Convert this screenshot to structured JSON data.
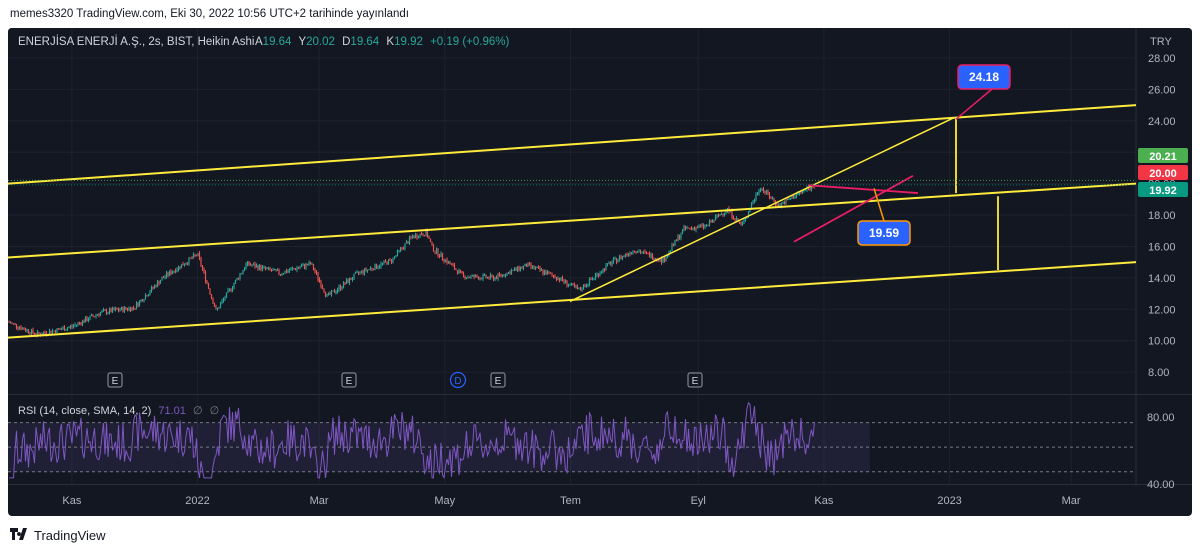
{
  "publish_line": "memes3320 TradingView.com, Eki 30, 2022 10:56 UTC+2 tarihinde yayınlandı",
  "footer": {
    "brand": "TradingView",
    "logo_icon": "tradingview-logo-icon"
  },
  "header": {
    "symbol": "ENERJİSA ENERJİ A.Ş., 2s, BIST, Heikin Ashi",
    "o_label": "A",
    "o_value": "19.64",
    "h_label": "Y",
    "h_value": "20.02",
    "l_label": "D",
    "l_value": "19.64",
    "c_label": "K",
    "c_value": "19.92",
    "change": "+0.19 (+0.96%)",
    "currency": "TRY"
  },
  "rsi": {
    "label": "RSI (14, close, SMA, 14, 2)",
    "value": "71.01",
    "extra1": "∅",
    "extra2": "∅",
    "ticks": [
      "80.00",
      "40.00"
    ]
  },
  "price_badges": [
    {
      "text": "20.21",
      "color": "#4caf50"
    },
    {
      "text": "20.00",
      "color": "#f23645"
    },
    {
      "text": "19.92",
      "color": "#089981"
    }
  ],
  "callouts": [
    {
      "text": "24.18",
      "color": "#2962ff",
      "border": "#e91e63"
    },
    {
      "text": "19.59",
      "color": "#2962ff",
      "border": "#ff9800"
    }
  ],
  "event_markers": [
    {
      "letter": "E",
      "kind": "earnings"
    },
    {
      "letter": "E",
      "kind": "earnings"
    },
    {
      "letter": "D",
      "kind": "dividend"
    },
    {
      "letter": "E",
      "kind": "earnings"
    },
    {
      "letter": "E",
      "kind": "earnings"
    }
  ],
  "chart_data": {
    "type": "candlestick",
    "chart_style": "Heikin Ashi",
    "symbol": "ENERJİSA ENERJİ A.Ş.",
    "exchange": "BIST",
    "interval": "2s",
    "ylabel": "TRY",
    "ylim": [
      7.5,
      29
    ],
    "y_ticks": [
      "28.00",
      "26.00",
      "24.00",
      "22.00",
      "20.00",
      "18.00",
      "16.00",
      "14.00",
      "12.00",
      "10.00",
      "8.00"
    ],
    "x_ticks": [
      "Kas",
      "2022",
      "Mar",
      "May",
      "Tem",
      "Eyl",
      "Kas",
      "2023",
      "Mar"
    ],
    "grid": true,
    "colors": {
      "up": "#26a69a",
      "down": "#ef5350",
      "trendline": "#ffeb3b",
      "rsi": "#7e57c2",
      "triangle": "#e91e63"
    },
    "price_path": [
      {
        "date": "2021-10-01",
        "close": 11.2
      },
      {
        "date": "2021-10-15",
        "close": 10.4
      },
      {
        "date": "2021-11-01",
        "close": 10.9
      },
      {
        "date": "2021-11-15",
        "close": 11.8
      },
      {
        "date": "2021-12-01",
        "close": 12.1
      },
      {
        "date": "2021-12-15",
        "close": 14.0
      },
      {
        "date": "2022-01-01",
        "close": 15.5
      },
      {
        "date": "2022-01-10",
        "close": 11.9
      },
      {
        "date": "2022-01-25",
        "close": 14.9
      },
      {
        "date": "2022-02-10",
        "close": 14.3
      },
      {
        "date": "2022-02-25",
        "close": 14.9
      },
      {
        "date": "2022-03-05",
        "close": 12.8
      },
      {
        "date": "2022-03-20",
        "close": 14.3
      },
      {
        "date": "2022-04-05",
        "close": 15.1
      },
      {
        "date": "2022-04-15",
        "close": 16.6
      },
      {
        "date": "2022-04-22",
        "close": 16.9
      },
      {
        "date": "2022-04-25",
        "close": 15.9
      },
      {
        "date": "2022-05-10",
        "close": 14.1
      },
      {
        "date": "2022-05-25",
        "close": 14.0
      },
      {
        "date": "2022-06-10",
        "close": 14.8
      },
      {
        "date": "2022-06-25",
        "close": 14.0
      },
      {
        "date": "2022-07-05",
        "close": 13.2
      },
      {
        "date": "2022-07-20",
        "close": 14.9
      },
      {
        "date": "2022-08-01",
        "close": 15.8
      },
      {
        "date": "2022-08-15",
        "close": 15.1
      },
      {
        "date": "2022-08-25",
        "close": 17.1
      },
      {
        "date": "2022-09-05",
        "close": 17.3
      },
      {
        "date": "2022-09-15",
        "close": 18.4
      },
      {
        "date": "2022-09-22",
        "close": 17.3
      },
      {
        "date": "2022-10-01",
        "close": 19.8
      },
      {
        "date": "2022-10-10",
        "close": 18.6
      },
      {
        "date": "2022-10-20",
        "close": 19.4
      },
      {
        "date": "2022-10-28",
        "close": 19.92
      }
    ],
    "annotations": [
      {
        "type": "target",
        "value": 24.18
      },
      {
        "type": "target",
        "value": 19.59
      }
    ]
  }
}
